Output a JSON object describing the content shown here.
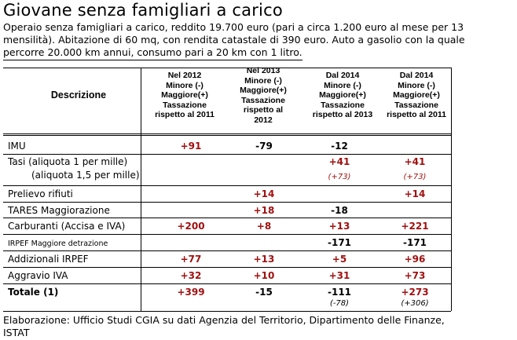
{
  "title": "Giovane senza famigliari a carico",
  "intro": {
    "line1": "Operaio senza famigliari a carico, reddito 19.700 euro (pari a circa 1.200 euro al mese per 13",
    "line2": "mensilità). Abitazione di 60 mq, con rendita catastale di 390 euro. Auto a gasolio con la quale",
    "line3": "percorre 20.000 km annui, consumo pari a 20 km con 1 litro."
  },
  "table": {
    "headers": {
      "desc": "Descrizione",
      "col1": [
        "Nel 2012",
        "Minore (-)",
        "Maggiore(+)",
        "Tassazione",
        "rispetto al 2011"
      ],
      "col2": [
        "Nel 2013",
        "Minore (-)",
        "Maggiore(+)",
        "Tassazione",
        "rispetto al",
        "2012"
      ],
      "col3": [
        "Dal 2014",
        "Minore (-)",
        "Maggiore(+)",
        "Tassazione",
        "rispetto al 2013"
      ],
      "col4": [
        "Dal 2014",
        "Minore (-)",
        "Maggiore(+)",
        "Tassazione",
        "rispetto al 2011"
      ]
    },
    "rows": [
      {
        "desc": "IMU",
        "v1": "+91",
        "v2": "-79",
        "v3": "-12",
        "v4": ""
      },
      {
        "desc": "Tasi (aliquota 1 per mille)",
        "desc2": "(aliquota 1,5 per mille)",
        "v1": "",
        "v2": "",
        "v3": "+41",
        "v3sub": "(+73)",
        "v4": "+41",
        "v4sub": "(+73)"
      },
      {
        "desc": "Prelievo rifiuti",
        "v1": "",
        "v2": "+14",
        "v3": "",
        "v4": "+14"
      },
      {
        "desc": "TARES Maggiorazione",
        "v1": "",
        "v2": "+18",
        "v3": "-18",
        "v4": ""
      },
      {
        "desc": "Carburanti (Accisa e IVA)",
        "v1": "+200",
        "v2": "+8",
        "v3": "+13",
        "v4": "+221"
      },
      {
        "desc": "IRPEF Maggiore detrazione",
        "v1": "",
        "v2": "",
        "v3": "-171",
        "v4": "-171"
      },
      {
        "desc": "Addizionali IRPEF",
        "v1": "+77",
        "v2": "+13",
        "v3": "+5",
        "v4": "+96"
      },
      {
        "desc": "Aggravio IVA",
        "v1": "+32",
        "v2": "+10",
        "v3": "+31",
        "v4": "+73"
      },
      {
        "desc": "Totale (1)",
        "v1": "+399",
        "v2": "-15",
        "v3": "-111",
        "v3sub": "(-78)",
        "v4": "+273",
        "v4sub": "(+306)"
      }
    ]
  },
  "footer": {
    "line1": "Elaborazione: Ufficio Studi CGIA su dati Agenzia del Territorio, Dipartimento delle Finanze,",
    "line2": "ISTAT"
  },
  "colors": {
    "positive": "#a01010",
    "negative": "#000000"
  }
}
